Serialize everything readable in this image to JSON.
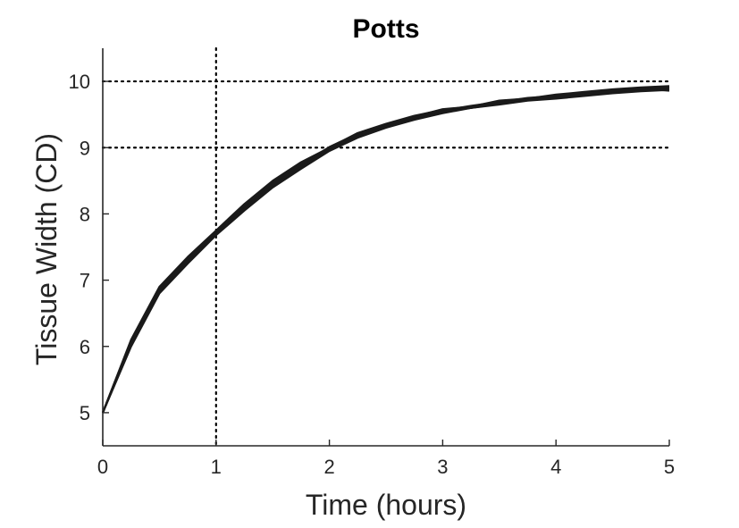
{
  "chart_data": {
    "type": "line",
    "title": "Potts",
    "xlabel": "Time (hours)",
    "ylabel": "Tissue Width (CD)",
    "xlim": [
      0,
      5
    ],
    "ylim": [
      4.5,
      10.5
    ],
    "xticks": [
      "0",
      "1",
      "2",
      "3",
      "4",
      "5"
    ],
    "yticks": [
      "5",
      "6",
      "7",
      "8",
      "9",
      "10"
    ],
    "grid": false,
    "legend": "none",
    "line_color": "#1a1a1a",
    "reference_lines": {
      "vertical_x": [
        1
      ],
      "horizontal_y": [
        9,
        10
      ],
      "style": "dotted"
    },
    "x": [
      0,
      0.25,
      0.5,
      0.75,
      1.0,
      1.25,
      1.5,
      1.75,
      2.0,
      2.25,
      2.5,
      2.75,
      3.0,
      3.25,
      3.5,
      3.75,
      4.0,
      4.25,
      4.5,
      4.75,
      5.0
    ],
    "series": [
      {
        "values": [
          5.0,
          6.05,
          6.85,
          7.3,
          7.72,
          8.1,
          8.45,
          8.72,
          8.98,
          9.18,
          9.33,
          9.45,
          9.55,
          9.62,
          9.68,
          9.74,
          9.77,
          9.81,
          9.85,
          9.88,
          9.9
        ]
      },
      {
        "values": [
          5.0,
          6.1,
          6.9,
          7.35,
          7.75,
          8.15,
          8.5,
          8.78,
          9.0,
          9.22,
          9.36,
          9.48,
          9.57,
          9.6,
          9.7,
          9.72,
          9.79,
          9.83,
          9.87,
          9.9,
          9.92
        ]
      },
      {
        "values": [
          5.0,
          6.0,
          6.8,
          7.25,
          7.68,
          8.05,
          8.4,
          8.68,
          8.95,
          9.15,
          9.3,
          9.42,
          9.52,
          9.6,
          9.66,
          9.72,
          9.75,
          9.8,
          9.83,
          9.86,
          9.88
        ]
      },
      {
        "values": [
          5.0,
          6.08,
          6.88,
          7.32,
          7.7,
          8.08,
          8.48,
          8.75,
          8.97,
          9.2,
          9.34,
          9.44,
          9.56,
          9.63,
          9.69,
          9.75,
          9.78,
          9.82,
          9.84,
          9.89,
          9.86
        ]
      },
      {
        "values": [
          5.0,
          6.02,
          6.83,
          7.28,
          7.73,
          8.12,
          8.42,
          8.7,
          8.99,
          9.17,
          9.32,
          9.46,
          9.53,
          9.61,
          9.67,
          9.73,
          9.76,
          9.79,
          9.86,
          9.87,
          9.91
        ]
      },
      {
        "values": [
          5.0,
          6.06,
          6.86,
          7.31,
          7.74,
          8.13,
          8.47,
          8.74,
          9.01,
          9.21,
          9.35,
          9.47,
          9.58,
          9.62,
          9.71,
          9.74,
          9.8,
          9.84,
          9.88,
          9.91,
          9.93
        ]
      },
      {
        "values": [
          5.0,
          6.03,
          6.84,
          7.27,
          7.69,
          8.07,
          8.44,
          8.71,
          8.96,
          9.16,
          9.31,
          9.43,
          9.54,
          9.6,
          9.65,
          9.71,
          9.74,
          9.78,
          9.82,
          9.85,
          9.87
        ]
      }
    ]
  }
}
